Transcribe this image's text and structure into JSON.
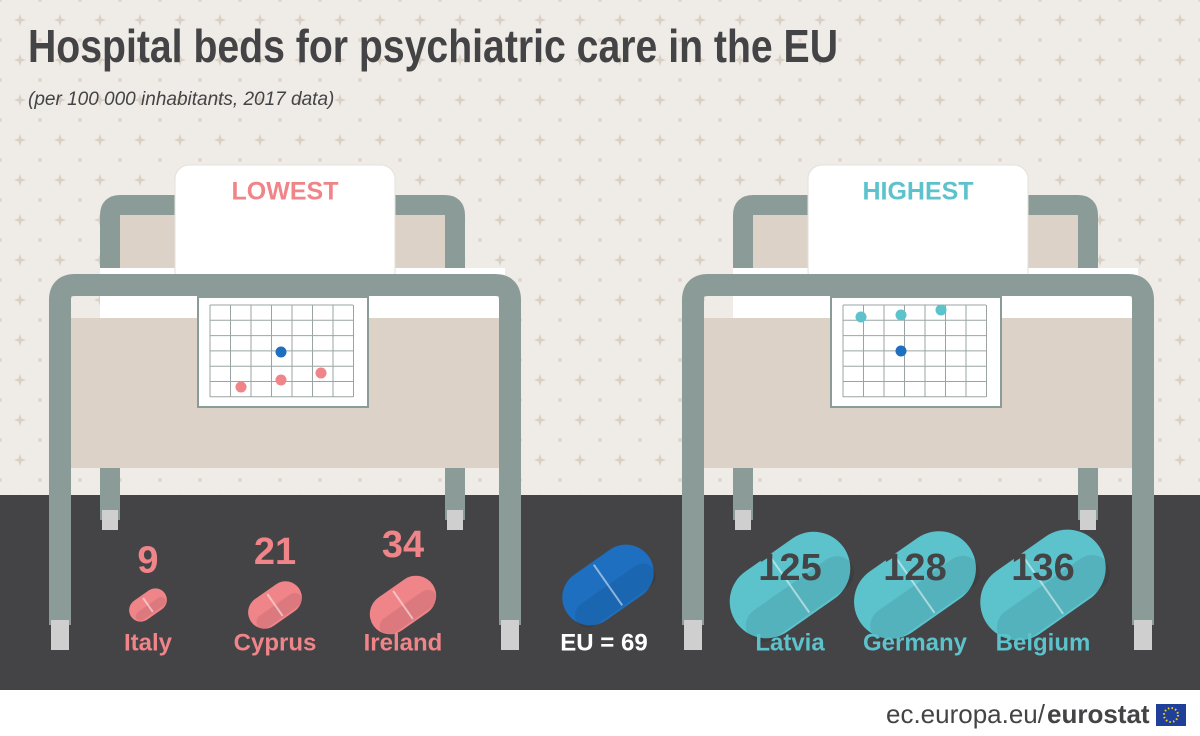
{
  "header": {
    "title": "Hospital beds for psychiatric care in the EU",
    "subtitle": "(per 100 000 inhabitants, 2017 data)"
  },
  "lowest": {
    "label": "LOWEST",
    "color": "#ef8489",
    "countries": [
      {
        "name": "Italy",
        "value": 9
      },
      {
        "name": "Cyprus",
        "value": 21
      },
      {
        "name": "Ireland",
        "value": 34
      }
    ]
  },
  "highest": {
    "label": "HIGHEST",
    "color": "#5cc2cc",
    "countries": [
      {
        "name": "Latvia",
        "value": 125
      },
      {
        "name": "Germany",
        "value": 128
      },
      {
        "name": "Belgium",
        "value": 136
      }
    ]
  },
  "eu": {
    "label": "EU = 69",
    "value": 69,
    "color": "#1e6fbf"
  },
  "footer": {
    "url": "ec.europa.eu/",
    "brand": "eurostat"
  }
}
